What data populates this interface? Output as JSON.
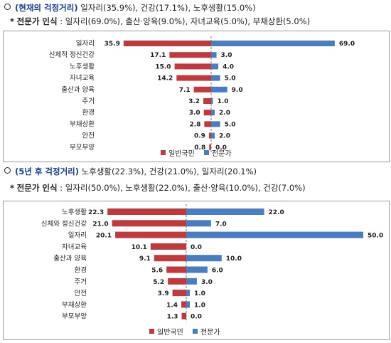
{
  "section1": {
    "heading_prefix": "(현재의 걱정거리)",
    "heading_rest": " 일자리(35.9%), 건강(17.1%), 노후생활(15.0%)",
    "expert_marker": "*",
    "expert_label": "전문가 인식",
    "expert_text": " : 일자리(69.0%), 출산·양육(9.0%), 자녀교육(5.0%), 부채상환(5.0%)"
  },
  "section2": {
    "heading_prefix": "(5년 후 걱정거리)",
    "heading_rest": " 노후생활(22.3%), 건강(21.0%), 일자리(20.1%)",
    "expert_marker": "*",
    "expert_label": "전문가 인식",
    "expert_text": " : 일자리(50.0%), 노후생활(22.0%), 출산·양육(10.0%), 건강(7.0%)"
  },
  "colors": {
    "general": "#c0393d",
    "expert": "#4a7cc1",
    "heading": "#1b3d9c"
  },
  "chart_data": [
    {
      "type": "bar",
      "orientation": "horizontal-diverging",
      "categories": [
        "일자리",
        "신체적 정신건강",
        "노후생활",
        "자녀교육",
        "출산과 양육",
        "주거",
        "환경",
        "부채상환",
        "안전",
        "부모부양"
      ],
      "series": [
        {
          "name": "일반국민",
          "values": [
            35.9,
            17.1,
            15.0,
            14.2,
            7.1,
            3.2,
            3.0,
            2.8,
            0.9,
            0.8
          ]
        },
        {
          "name": "전문가",
          "values": [
            69.0,
            3.0,
            4.0,
            5.0,
            9.0,
            1.0,
            2.0,
            5.0,
            2.0,
            0.0
          ]
        }
      ],
      "grid": false,
      "legend": "bottom-center"
    },
    {
      "type": "bar",
      "orientation": "horizontal-diverging",
      "categories": [
        "노후생활",
        "신체와 정신건강",
        "일자리",
        "자녀교육",
        "출산과 양육",
        "환경",
        "주거",
        "안전",
        "부채상환",
        "부모부양"
      ],
      "series": [
        {
          "name": "일반국민",
          "values": [
            22.3,
            21.0,
            20.1,
            10.1,
            9.1,
            5.6,
            5.2,
            3.9,
            1.4,
            1.3
          ]
        },
        {
          "name": "전문가",
          "values": [
            22.0,
            7.0,
            50.0,
            0.0,
            10.0,
            6.0,
            3.0,
            1.0,
            1.0,
            0.0
          ]
        }
      ],
      "grid": false,
      "legend": "bottom-center"
    }
  ]
}
